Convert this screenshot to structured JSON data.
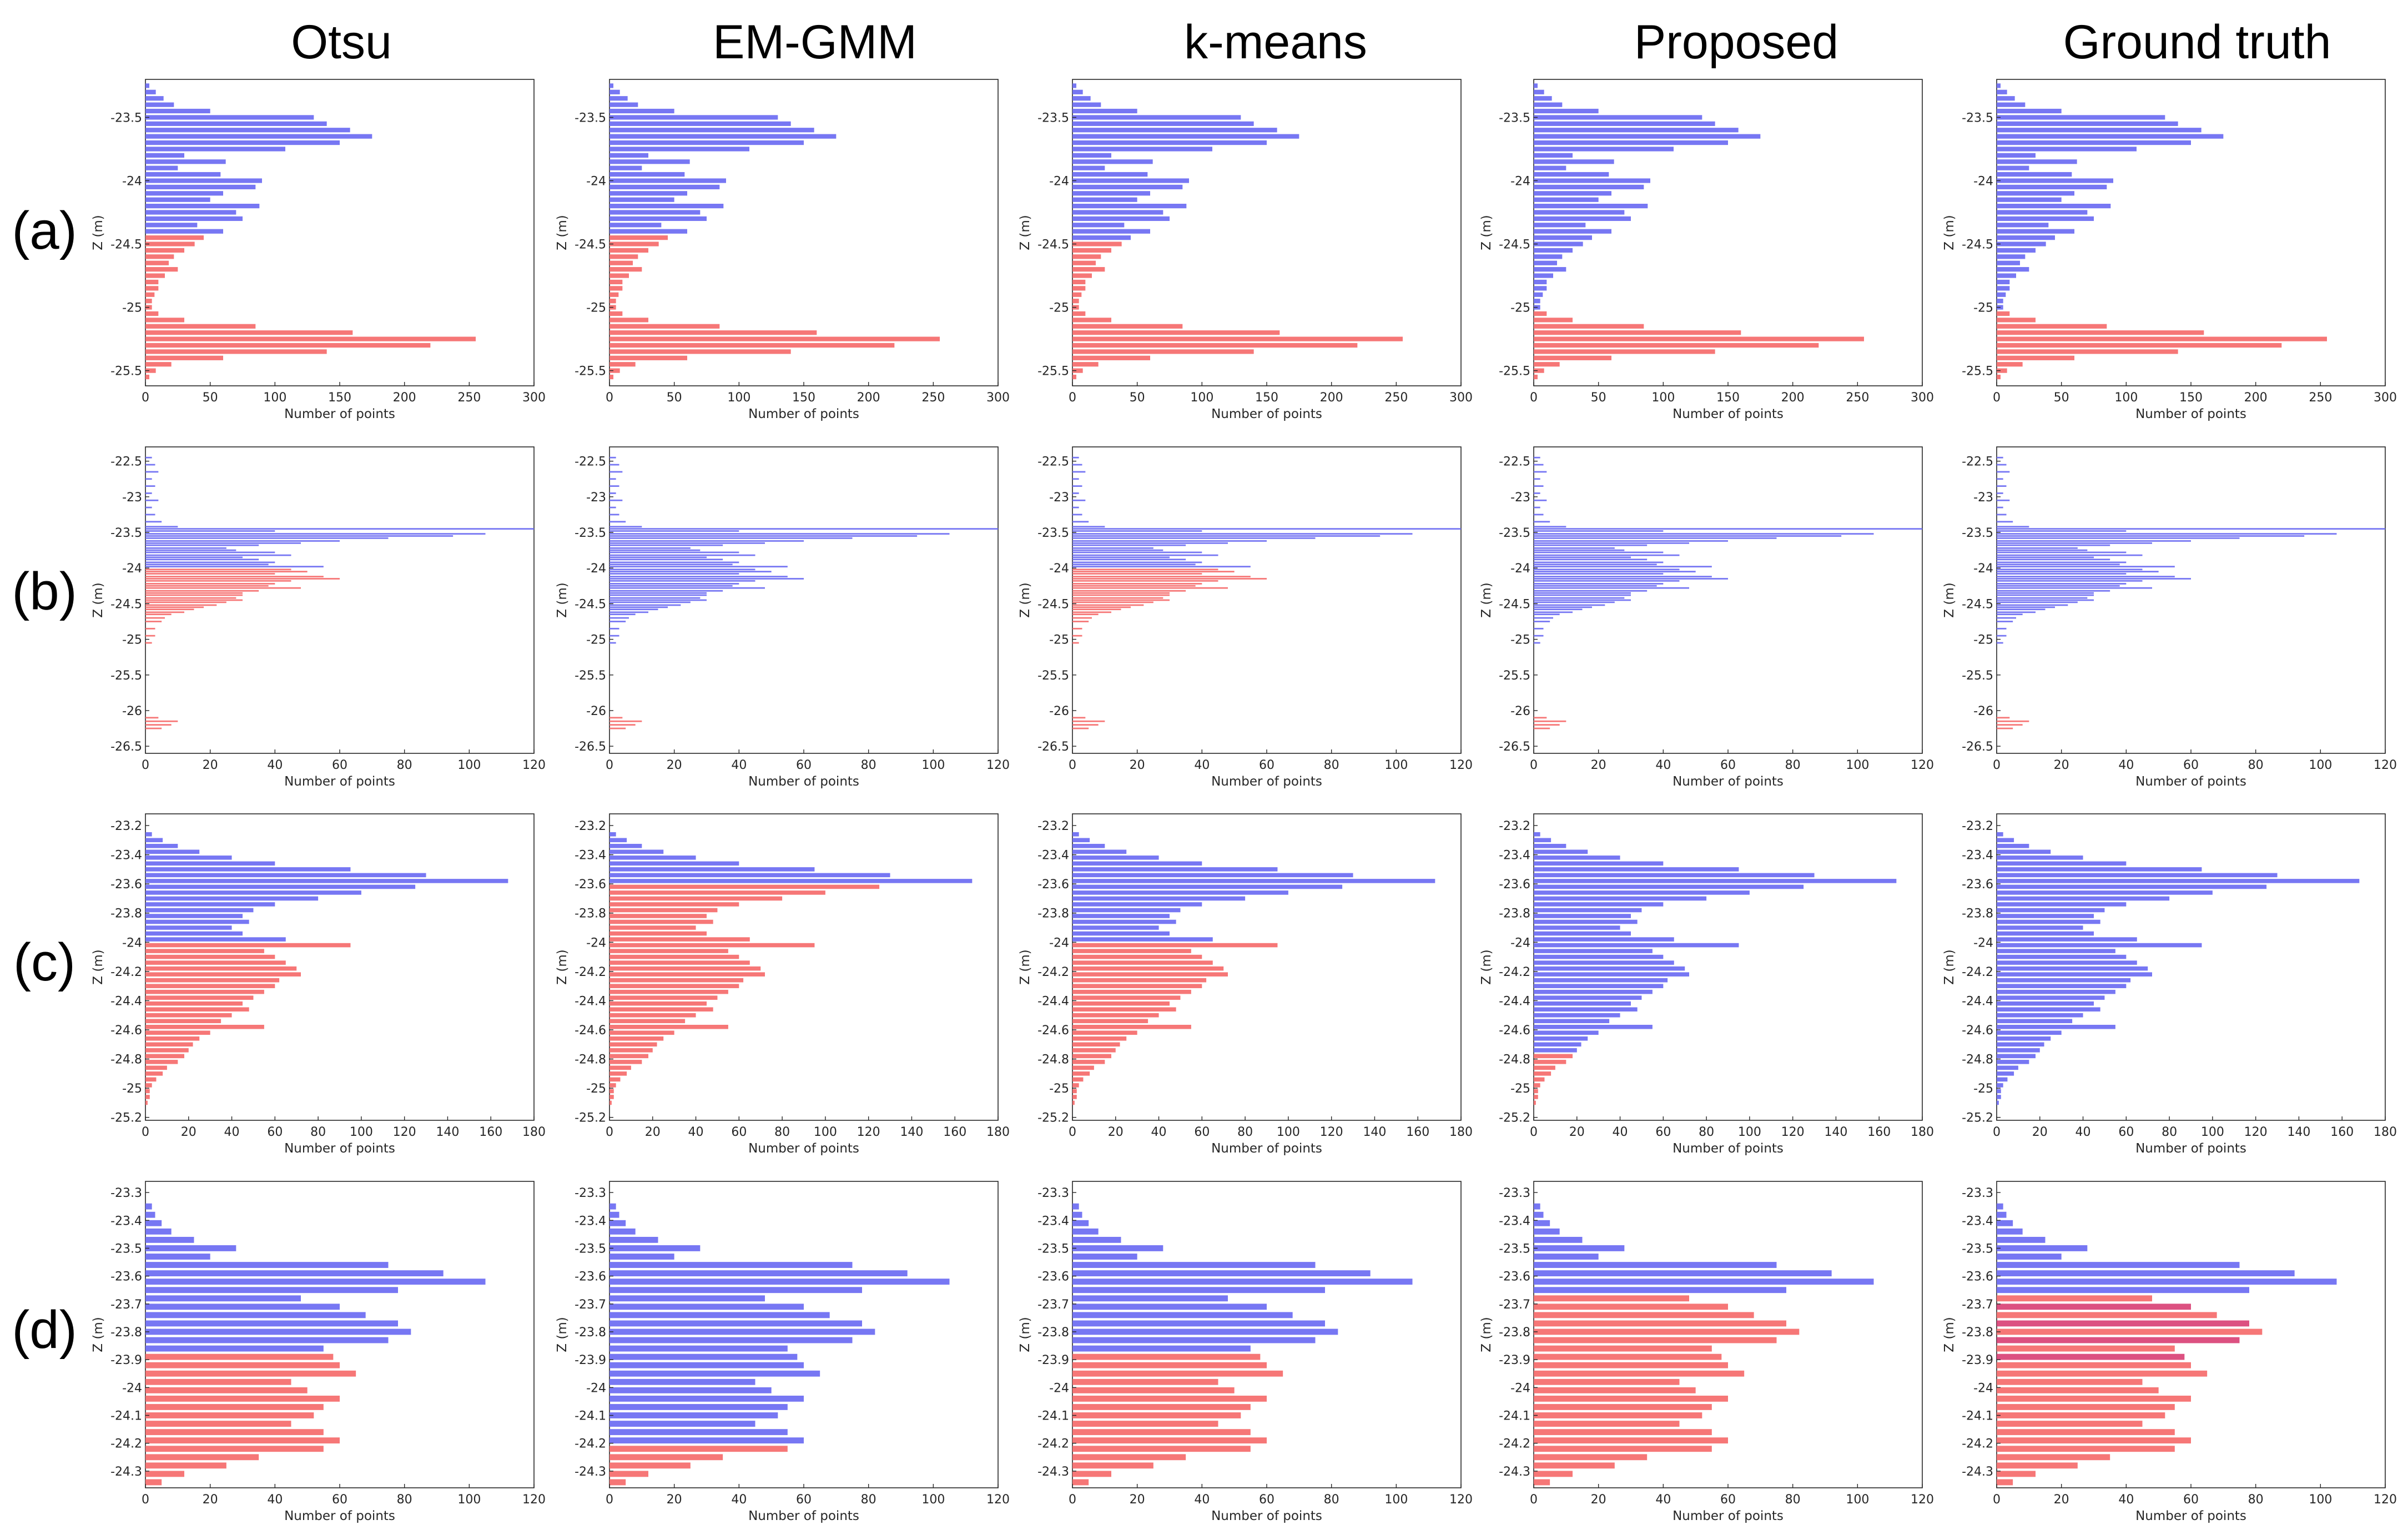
{
  "figure": {
    "columns": [
      "Otsu",
      "EM-GMM",
      "k-means",
      "Proposed",
      "Ground truth"
    ],
    "rows": [
      "(a)",
      "(b)",
      "(c)",
      "(d)"
    ],
    "xlabel": "Number of points",
    "ylabel": "Z (m)",
    "colors": {
      "class1": "#6b6bf2",
      "class2": "#f56b6b",
      "overlap": "#d6336b",
      "axis": "#262626"
    }
  },
  "chart_data": [
    {
      "type": "bar",
      "orientation": "horizontal",
      "row": "(a)",
      "title": "",
      "xlabel": "Number of points",
      "ylabel": "Z (m)",
      "xlim": [
        0,
        300
      ],
      "xticks": [
        0,
        50,
        100,
        150,
        200,
        250,
        300
      ],
      "ylim": [
        -25.62,
        -23.2
      ],
      "yticks": [
        -23.5,
        -24,
        -24.5,
        -25,
        -25.5
      ],
      "ytick_labels": [
        "-23.5",
        "-24",
        "-24.5",
        "-25",
        "-25.5"
      ],
      "bins": [
        [
          -23.25,
          3
        ],
        [
          -23.3,
          8
        ],
        [
          -23.35,
          14
        ],
        [
          -23.4,
          22
        ],
        [
          -23.45,
          50
        ],
        [
          -23.5,
          130
        ],
        [
          -23.55,
          140
        ],
        [
          -23.6,
          158
        ],
        [
          -23.65,
          175
        ],
        [
          -23.7,
          150
        ],
        [
          -23.75,
          108
        ],
        [
          -23.8,
          30
        ],
        [
          -23.85,
          62
        ],
        [
          -23.9,
          25
        ],
        [
          -23.95,
          58
        ],
        [
          -24.0,
          90
        ],
        [
          -24.05,
          85
        ],
        [
          -24.1,
          60
        ],
        [
          -24.15,
          50
        ],
        [
          -24.2,
          88
        ],
        [
          -24.25,
          70
        ],
        [
          -24.3,
          75
        ],
        [
          -24.35,
          40
        ],
        [
          -24.4,
          60
        ],
        [
          -24.45,
          45
        ],
        [
          -24.5,
          38
        ],
        [
          -24.55,
          30
        ],
        [
          -24.6,
          22
        ],
        [
          -24.65,
          18
        ],
        [
          -24.7,
          25
        ],
        [
          -24.75,
          15
        ],
        [
          -24.8,
          10
        ],
        [
          -24.85,
          10
        ],
        [
          -24.9,
          7
        ],
        [
          -24.95,
          5
        ],
        [
          -25.0,
          5
        ],
        [
          -25.05,
          10
        ],
        [
          -25.1,
          30
        ],
        [
          -25.15,
          85
        ],
        [
          -25.2,
          160
        ],
        [
          -25.25,
          255
        ],
        [
          -25.3,
          220
        ],
        [
          -25.35,
          140
        ],
        [
          -25.4,
          60
        ],
        [
          -25.45,
          20
        ],
        [
          -25.5,
          8
        ],
        [
          -25.55,
          3
        ]
      ],
      "methods": [
        {
          "name": "Otsu",
          "split_z": -24.44,
          "upper_class": "class1"
        },
        {
          "name": "EM-GMM",
          "split_z": -24.42,
          "upper_class": "class1"
        },
        {
          "name": "k-means",
          "split_z": -24.49,
          "upper_class": "class1"
        },
        {
          "name": "Proposed",
          "split_z": -25.04,
          "upper_class": "class1"
        },
        {
          "name": "Ground truth",
          "split_z": -25.04,
          "upper_class": "class1"
        }
      ]
    },
    {
      "type": "bar",
      "orientation": "horizontal",
      "row": "(b)",
      "title": "",
      "xlabel": "Number of points",
      "ylabel": "Z (m)",
      "xlim": [
        0,
        120
      ],
      "xticks": [
        0,
        20,
        40,
        60,
        80,
        100,
        120
      ],
      "ylim": [
        -26.6,
        -22.3
      ],
      "yticks": [
        -22.5,
        -23,
        -23.5,
        -24,
        -24.5,
        -25,
        -25.5,
        -26,
        -26.5
      ],
      "ytick_labels": [
        "-22.5",
        "-23",
        "-23.5",
        "-24",
        "-24.5",
        "-25",
        "-25.5",
        "-26",
        "-26.5"
      ],
      "bins": [
        [
          -22.45,
          2
        ],
        [
          -22.55,
          3
        ],
        [
          -22.65,
          4
        ],
        [
          -22.75,
          2
        ],
        [
          -22.85,
          3
        ],
        [
          -22.95,
          2
        ],
        [
          -23.05,
          4
        ],
        [
          -23.15,
          2
        ],
        [
          -23.25,
          3
        ],
        [
          -23.35,
          5
        ],
        [
          -23.42,
          10
        ],
        [
          -23.45,
          120
        ],
        [
          -23.48,
          40
        ],
        [
          -23.52,
          105
        ],
        [
          -23.55,
          95
        ],
        [
          -23.58,
          75
        ],
        [
          -23.62,
          60
        ],
        [
          -23.65,
          48
        ],
        [
          -23.68,
          35
        ],
        [
          -23.72,
          25
        ],
        [
          -23.75,
          28
        ],
        [
          -23.78,
          40
        ],
        [
          -23.82,
          45
        ],
        [
          -23.85,
          30
        ],
        [
          -23.88,
          35
        ],
        [
          -23.92,
          40
        ],
        [
          -23.95,
          38
        ],
        [
          -23.98,
          55
        ],
        [
          -24.02,
          45
        ],
        [
          -24.05,
          50
        ],
        [
          -24.08,
          40
        ],
        [
          -24.12,
          55
        ],
        [
          -24.15,
          60
        ],
        [
          -24.18,
          45
        ],
        [
          -24.22,
          40
        ],
        [
          -24.25,
          38
        ],
        [
          -24.28,
          48
        ],
        [
          -24.32,
          35
        ],
        [
          -24.35,
          30
        ],
        [
          -24.38,
          30
        ],
        [
          -24.42,
          28
        ],
        [
          -24.45,
          30
        ],
        [
          -24.48,
          25
        ],
        [
          -24.52,
          22
        ],
        [
          -24.55,
          18
        ],
        [
          -24.58,
          15
        ],
        [
          -24.62,
          12
        ],
        [
          -24.65,
          8
        ],
        [
          -24.7,
          6
        ],
        [
          -24.75,
          5
        ],
        [
          -24.85,
          3
        ],
        [
          -24.95,
          3
        ],
        [
          -25.05,
          2
        ],
        [
          -26.1,
          4
        ],
        [
          -26.15,
          10
        ],
        [
          -26.2,
          8
        ],
        [
          -26.25,
          5
        ]
      ],
      "methods": [
        {
          "name": "Otsu",
          "split_z": -24.0,
          "upper_class": "class1",
          "lowest_cluster_class": "class2"
        },
        {
          "name": "EM-GMM",
          "split_z": -26.0,
          "upper_class": "class1"
        },
        {
          "name": "k-means",
          "split_z": -24.0,
          "upper_class": "class1",
          "lowest_cluster_class": "class2"
        },
        {
          "name": "Proposed",
          "split_z": -26.0,
          "upper_class": "class1"
        },
        {
          "name": "Ground truth",
          "split_z": -26.0,
          "upper_class": "class1"
        }
      ]
    },
    {
      "type": "bar",
      "orientation": "horizontal",
      "row": "(c)",
      "title": "",
      "xlabel": "Number of points",
      "ylabel": "Z (m)",
      "xlim": [
        0,
        180
      ],
      "xticks": [
        0,
        20,
        40,
        60,
        80,
        100,
        120,
        140,
        160,
        180
      ],
      "ylim": [
        -25.22,
        -23.12
      ],
      "yticks": [
        -23.2,
        -23.4,
        -23.6,
        -23.8,
        -24,
        -24.2,
        -24.4,
        -24.6,
        -24.8,
        -25,
        -25.2
      ],
      "ytick_labels": [
        "-23.2",
        "-23.4",
        "-23.6",
        "-23.8",
        "-24",
        "-24.2",
        "-24.4",
        "-24.6",
        "-24.8",
        "-25",
        "-25.2"
      ],
      "bins": [
        [
          -23.26,
          3
        ],
        [
          -23.3,
          8
        ],
        [
          -23.34,
          15
        ],
        [
          -23.38,
          25
        ],
        [
          -23.42,
          40
        ],
        [
          -23.46,
          60
        ],
        [
          -23.5,
          95
        ],
        [
          -23.54,
          130
        ],
        [
          -23.58,
          168
        ],
        [
          -23.62,
          125
        ],
        [
          -23.66,
          100
        ],
        [
          -23.7,
          80
        ],
        [
          -23.74,
          60
        ],
        [
          -23.78,
          50
        ],
        [
          -23.82,
          45
        ],
        [
          -23.86,
          48
        ],
        [
          -23.9,
          40
        ],
        [
          -23.94,
          45
        ],
        [
          -23.98,
          65
        ],
        [
          -24.02,
          95
        ],
        [
          -24.06,
          55
        ],
        [
          -24.1,
          60
        ],
        [
          -24.14,
          65
        ],
        [
          -24.18,
          70
        ],
        [
          -24.22,
          72
        ],
        [
          -24.26,
          62
        ],
        [
          -24.3,
          60
        ],
        [
          -24.34,
          55
        ],
        [
          -24.38,
          50
        ],
        [
          -24.42,
          45
        ],
        [
          -24.46,
          48
        ],
        [
          -24.5,
          40
        ],
        [
          -24.54,
          35
        ],
        [
          -24.58,
          55
        ],
        [
          -24.62,
          30
        ],
        [
          -24.66,
          25
        ],
        [
          -24.7,
          22
        ],
        [
          -24.74,
          20
        ],
        [
          -24.78,
          18
        ],
        [
          -24.82,
          15
        ],
        [
          -24.86,
          10
        ],
        [
          -24.9,
          8
        ],
        [
          -24.94,
          5
        ],
        [
          -24.98,
          3
        ],
        [
          -25.02,
          2
        ],
        [
          -25.06,
          2
        ],
        [
          -25.1,
          1
        ]
      ],
      "methods": [
        {
          "name": "Otsu",
          "split_z": -24.0,
          "upper_class": "class1"
        },
        {
          "name": "EM-GMM",
          "split_z": -23.6,
          "upper_class": "class1"
        },
        {
          "name": "k-means",
          "split_z": -24.0,
          "upper_class": "class1"
        },
        {
          "name": "Proposed",
          "split_z": -24.76,
          "upper_class": "class1"
        },
        {
          "name": "Ground truth",
          "split_z": -25.3,
          "upper_class": "class1"
        }
      ]
    },
    {
      "type": "bar",
      "orientation": "horizontal",
      "row": "(d)",
      "title": "",
      "xlabel": "Number of points",
      "ylabel": "Z (m)",
      "xlim": [
        0,
        120
      ],
      "xticks": [
        0,
        20,
        40,
        60,
        80,
        100,
        120
      ],
      "ylim": [
        -24.36,
        -23.26
      ],
      "yticks": [
        -23.3,
        -23.4,
        -23.5,
        -23.6,
        -23.7,
        -23.8,
        -23.9,
        -24,
        -24.1,
        -24.2,
        -24.3
      ],
      "ytick_labels": [
        "-23.3",
        "-23.4",
        "-23.5",
        "-23.6",
        "-23.7",
        "-23.8",
        "-23.9",
        "-24",
        "-24.1",
        "-24.2",
        "-24.3"
      ],
      "bins": [
        [
          -23.35,
          2
        ],
        [
          -23.38,
          3
        ],
        [
          -23.41,
          5
        ],
        [
          -23.44,
          8
        ],
        [
          -23.47,
          15
        ],
        [
          -23.5,
          28
        ],
        [
          -23.53,
          20
        ],
        [
          -23.56,
          75
        ],
        [
          -23.59,
          92
        ],
        [
          -23.62,
          105
        ],
        [
          -23.65,
          78
        ],
        [
          -23.68,
          48
        ],
        [
          -23.71,
          60
        ],
        [
          -23.74,
          68
        ],
        [
          -23.77,
          78
        ],
        [
          -23.8,
          82
        ],
        [
          -23.83,
          75
        ],
        [
          -23.86,
          55
        ],
        [
          -23.89,
          58
        ],
        [
          -23.92,
          60
        ],
        [
          -23.95,
          65
        ],
        [
          -23.98,
          45
        ],
        [
          -24.01,
          50
        ],
        [
          -24.04,
          60
        ],
        [
          -24.07,
          55
        ],
        [
          -24.1,
          52
        ],
        [
          -24.13,
          45
        ],
        [
          -24.16,
          55
        ],
        [
          -24.19,
          60
        ],
        [
          -24.22,
          55
        ],
        [
          -24.25,
          35
        ],
        [
          -24.28,
          25
        ],
        [
          -24.31,
          12
        ],
        [
          -24.34,
          5
        ]
      ],
      "methods": [
        {
          "name": "Otsu",
          "split_z": -23.875,
          "upper_class": "class1"
        },
        {
          "name": "EM-GMM",
          "split_z": -24.205,
          "upper_class": "class1"
        },
        {
          "name": "k-means",
          "split_z": -23.875,
          "upper_class": "class1"
        },
        {
          "name": "Proposed",
          "split_z": -23.665,
          "upper_class": "class1"
        },
        {
          "name": "Ground truth",
          "split_z": -23.665,
          "upper_class": "class1",
          "mixed_overlap": true
        }
      ]
    }
  ]
}
